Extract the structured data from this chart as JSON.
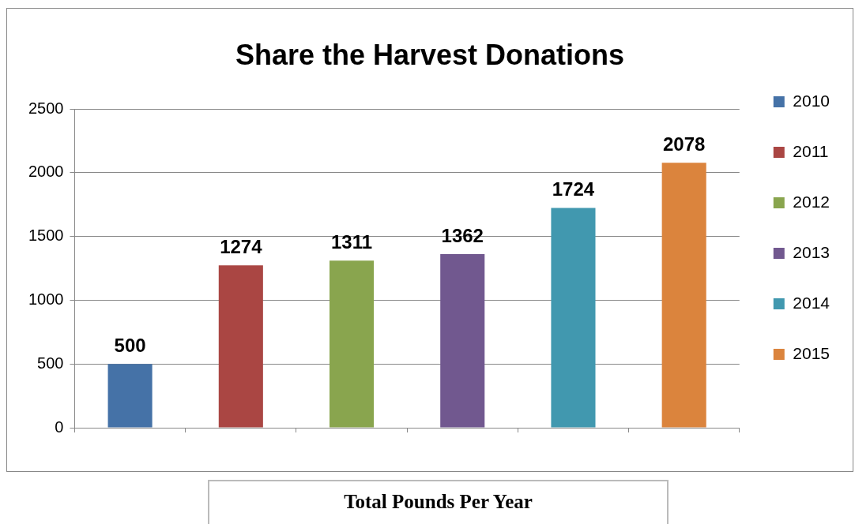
{
  "chart_data": {
    "type": "bar",
    "title": "Share the Harvest Donations",
    "xlabel": "Total Pounds Per Year",
    "categories": [
      null,
      null,
      null,
      null,
      null,
      null
    ],
    "series": [
      {
        "name": "2010",
        "color": "#4572a7",
        "values": [
          500,
          null,
          null,
          null,
          null,
          null
        ]
      },
      {
        "name": "2011",
        "color": "#aa4643",
        "values": [
          null,
          1274,
          null,
          null,
          null,
          null
        ]
      },
      {
        "name": "2012",
        "color": "#89a54e",
        "values": [
          null,
          null,
          1311,
          null,
          null,
          null
        ]
      },
      {
        "name": "2013",
        "color": "#71588f",
        "values": [
          null,
          null,
          null,
          1362,
          null,
          null
        ]
      },
      {
        "name": "2014",
        "color": "#4198af",
        "values": [
          null,
          null,
          null,
          null,
          1724,
          null
        ]
      },
      {
        "name": "2015",
        "color": "#db843d",
        "values": [
          null,
          null,
          null,
          null,
          null,
          2078
        ]
      }
    ],
    "ylim": [
      0,
      2500
    ],
    "yticks": [
      0,
      500,
      1000,
      1500,
      2000,
      2500
    ],
    "grid": "y",
    "legend": "right",
    "tick_labels": "y",
    "data_labels": true
  }
}
